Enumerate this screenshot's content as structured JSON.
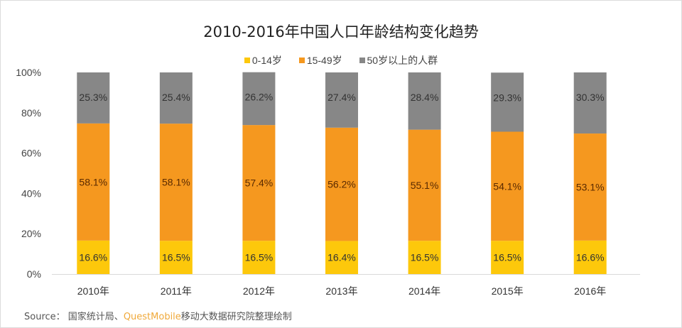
{
  "chart_data": {
    "type": "bar",
    "stacked": true,
    "title": "2010-2016年中国人口年龄结构变化趋势",
    "xlabel": "",
    "ylabel": "",
    "ylim": [
      0,
      100
    ],
    "yticks": [
      "0%",
      "20%",
      "40%",
      "60%",
      "80%",
      "100%"
    ],
    "ytick_values": [
      0,
      20,
      40,
      60,
      80,
      100
    ],
    "grid": false,
    "legend_position": "top-center",
    "categories": [
      "2010年",
      "2011年",
      "2012年",
      "2013年",
      "2014年",
      "2015年",
      "2016年"
    ],
    "series": [
      {
        "name": "0-14岁",
        "color": "#fdc80b",
        "values": [
          16.6,
          16.5,
          16.5,
          16.4,
          16.5,
          16.5,
          16.6
        ]
      },
      {
        "name": "15-49岁",
        "color": "#f5981f",
        "values": [
          58.1,
          58.1,
          57.4,
          56.2,
          55.1,
          54.1,
          53.1
        ]
      },
      {
        "name": "50岁以上的人群",
        "color": "#878787",
        "values": [
          25.3,
          25.4,
          26.2,
          27.4,
          28.4,
          29.3,
          30.3
        ]
      }
    ],
    "data_label_suffix": "%"
  },
  "legend": {
    "items": [
      {
        "label": "0-14岁",
        "color": "#fdc80b"
      },
      {
        "label": "15-49岁",
        "color": "#f5981f"
      },
      {
        "label": "50岁以上的人群",
        "color": "#878787"
      }
    ]
  },
  "footer": {
    "source_label": "Source：",
    "source_org": "国家统计局、",
    "brand": "QuestMobile",
    "source_tail": "移动大数据研究院整理绘制"
  }
}
